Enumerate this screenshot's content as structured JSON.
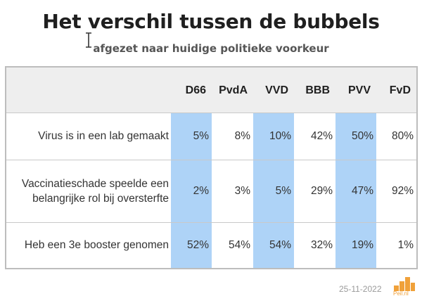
{
  "header": {
    "title": "Het verschil tussen de bubbels",
    "subtitle": "afgezet naar huidige politieke voorkeur"
  },
  "table": {
    "columns": [
      "D66",
      "PvdA",
      "VVD",
      "BBB",
      "PVV",
      "FvD"
    ],
    "rows": [
      {
        "label": "Virus is in een lab gemaakt",
        "values": [
          "5%",
          "8%",
          "10%",
          "42%",
          "50%",
          "80%"
        ]
      },
      {
        "label": "Vaccinatieschade speelde een belangrijke rol bij oversterfte",
        "values": [
          "2%",
          "3%",
          "5%",
          "29%",
          "47%",
          "92%"
        ]
      },
      {
        "label": "Heb een 3e booster genomen",
        "values": [
          "52%",
          "54%",
          "54%",
          "32%",
          "19%",
          "1%"
        ]
      }
    ],
    "highlight_color": "#aed3f7",
    "header_bg": "#eeeeee"
  },
  "footer": {
    "date": "25-11-2022",
    "logo_text": "Peil.nl",
    "logo_color": "#f0a13a"
  }
}
